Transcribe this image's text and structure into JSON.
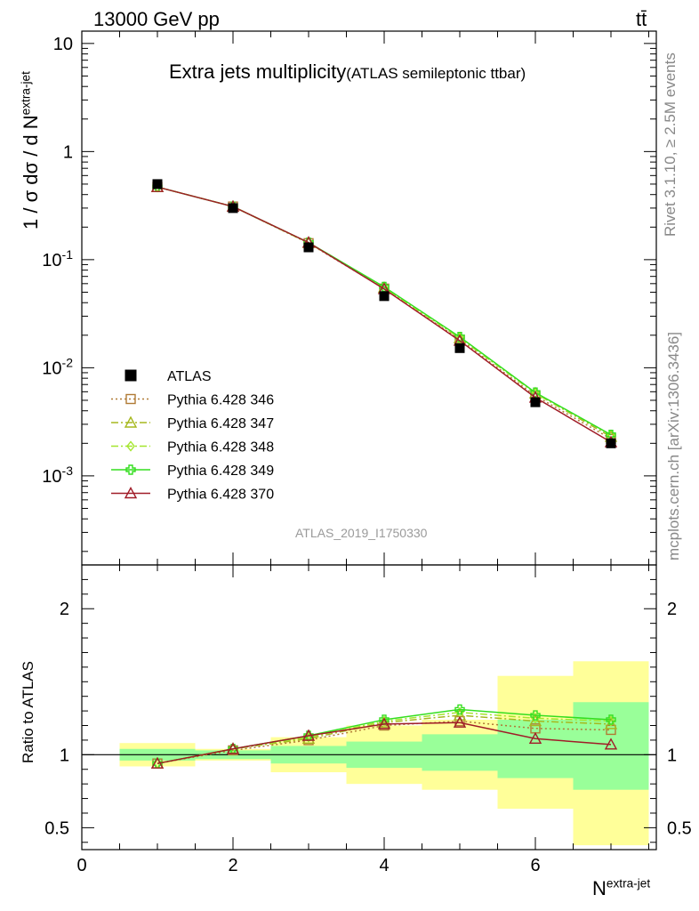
{
  "header": {
    "beam_label": "13000 GeV pp",
    "process_label": "tt̄"
  },
  "side_labels": {
    "rivet": "Rivet 3.1.10, ≥ 2.5M events",
    "mcplots": "mcplots.cern.ch [arXiv:1306.3436]"
  },
  "watermark": "ATLAS_2019_I1750330",
  "colors": {
    "data": "#000000",
    "band_inner": "#99ff99",
    "band_outer": "#ffff99",
    "p346": "#b07a35",
    "p347": "#a6b81f",
    "p348": "#a4e62e",
    "p349": "#34de1f",
    "p370": "#a01c28"
  },
  "chart_data": [
    {
      "type": "scatter",
      "title": "Extra jets multiplicity",
      "subtitle": "(ATLAS semileptonic ttbar)",
      "xlabel": "N^{extra-jet}",
      "ylabel": "1 / σ dσ / d N^{extra-jet}",
      "yscale": "log",
      "ylim": [
        0.00015,
        13
      ],
      "xlim": [
        0,
        7.6
      ],
      "ytick_labels": [
        "10",
        "1",
        "10^{-1}",
        "10^{-2}",
        "10^{-3}"
      ],
      "legend_position": "left-lower",
      "x": [
        1,
        2,
        3,
        4,
        5,
        6,
        7
      ],
      "series": [
        {
          "name": "ATLAS",
          "marker": "filled-square",
          "values": [
            0.5,
            0.3,
            0.13,
            0.046,
            0.0152,
            0.0048,
            0.002
          ]
        },
        {
          "name": "Pythia 6.428 346",
          "marker": "open-square",
          "line": "dotted",
          "values": [
            0.47,
            0.31,
            0.142,
            0.054,
            0.0182,
            0.0055,
            0.0022
          ]
        },
        {
          "name": "Pythia 6.428 347",
          "marker": "open-triangle",
          "line": "dashdot",
          "values": [
            0.47,
            0.31,
            0.143,
            0.055,
            0.0188,
            0.0058,
            0.0023
          ]
        },
        {
          "name": "Pythia 6.428 348",
          "marker": "open-diamond",
          "line": "dashdot",
          "values": [
            0.47,
            0.31,
            0.143,
            0.055,
            0.019,
            0.0058,
            0.0024
          ]
        },
        {
          "name": "Pythia 6.428 349",
          "marker": "open-cross",
          "line": "solid",
          "values": [
            0.47,
            0.31,
            0.144,
            0.056,
            0.0193,
            0.0059,
            0.0024
          ]
        },
        {
          "name": "Pythia 6.428 370",
          "marker": "open-triangle",
          "line": "solid",
          "values": [
            0.47,
            0.31,
            0.144,
            0.0535,
            0.0178,
            0.0053,
            0.00205
          ]
        }
      ]
    },
    {
      "type": "scatter",
      "ylabel": "Ratio to ATLAS",
      "xlabel": "N^{extra-jet}",
      "ylim": [
        0.35,
        2.3
      ],
      "xlim": [
        0,
        7.6
      ],
      "yticks": [
        0.5,
        1,
        2
      ],
      "ytick_labels": [
        "0.5",
        "1",
        "2"
      ],
      "xticks": [
        0,
        2,
        4,
        6
      ],
      "xtick_labels": [
        "0",
        "2",
        "4",
        "6"
      ],
      "bands": {
        "edges": [
          0.5,
          1.5,
          2.5,
          3.5,
          4.5,
          5.5,
          6.5,
          7.5
        ],
        "inner_low": [
          0.96,
          0.97,
          0.94,
          0.91,
          0.89,
          0.84,
          0.76
        ],
        "inner_high": [
          1.04,
          1.03,
          1.06,
          1.09,
          1.14,
          1.24,
          1.36
        ],
        "outer_low": [
          0.92,
          0.96,
          0.88,
          0.8,
          0.76,
          0.63,
          0.38
        ],
        "outer_high": [
          1.08,
          1.04,
          1.12,
          1.2,
          1.24,
          1.54,
          1.64
        ]
      },
      "x": [
        1,
        2,
        3,
        4,
        5,
        6,
        7
      ],
      "series": [
        {
          "name": "Pythia 6.428 346",
          "values": [
            0.94,
            1.03,
            1.1,
            1.2,
            1.23,
            1.18,
            1.17
          ]
        },
        {
          "name": "Pythia 6.428 347",
          "values": [
            0.94,
            1.04,
            1.11,
            1.22,
            1.27,
            1.23,
            1.21
          ]
        },
        {
          "name": "Pythia 6.428 348",
          "values": [
            0.94,
            1.04,
            1.12,
            1.23,
            1.29,
            1.25,
            1.23
          ]
        },
        {
          "name": "Pythia 6.428 349",
          "values": [
            0.94,
            1.04,
            1.13,
            1.24,
            1.31,
            1.27,
            1.24
          ]
        },
        {
          "name": "Pythia 6.428 370",
          "values": [
            0.94,
            1.04,
            1.13,
            1.21,
            1.22,
            1.11,
            1.07
          ]
        }
      ]
    }
  ]
}
